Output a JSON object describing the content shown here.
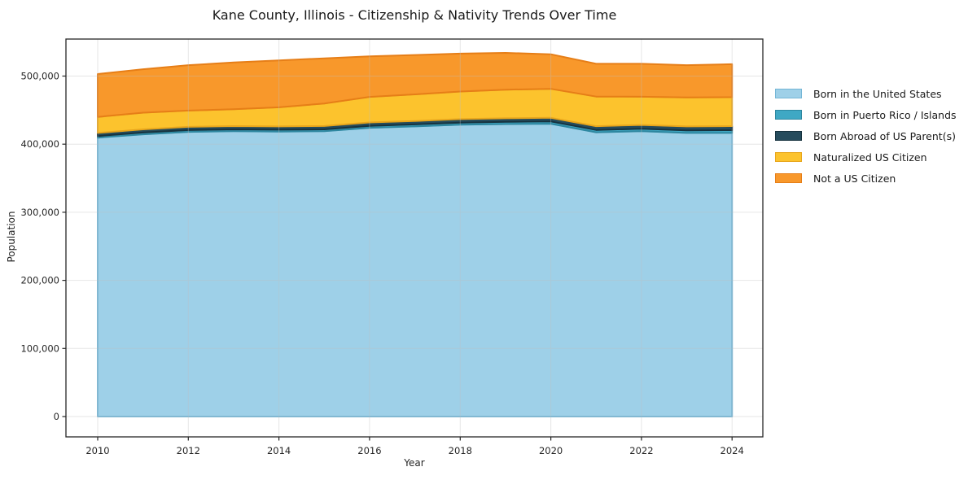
{
  "chart_data": {
    "type": "area",
    "stacked": true,
    "title": "Kane County, Illinois - Citizenship & Nativity Trends Over Time",
    "xlabel": "Year",
    "ylabel": "Population",
    "legend_position": "right",
    "grid": true,
    "xlim": [
      2009.3,
      2024.7
    ],
    "ylim": [
      -30000,
      560000
    ],
    "x": [
      2010,
      2011,
      2012,
      2013,
      2014,
      2015,
      2016,
      2017,
      2018,
      2019,
      2020,
      2021,
      2022,
      2023,
      2024
    ],
    "xticks": [
      {
        "v": 2010,
        "label": "2010"
      },
      {
        "v": 2012,
        "label": "2012"
      },
      {
        "v": 2014,
        "label": "2014"
      },
      {
        "v": 2016,
        "label": "2016"
      },
      {
        "v": 2018,
        "label": "2018"
      },
      {
        "v": 2020,
        "label": "2020"
      },
      {
        "v": 2022,
        "label": "2022"
      },
      {
        "v": 2024,
        "label": "2024"
      }
    ],
    "yticks": [
      {
        "v": 0,
        "label": "0"
      },
      {
        "v": 100000,
        "label": "100,000"
      },
      {
        "v": 200000,
        "label": "200,000"
      },
      {
        "v": 300000,
        "label": "300,000"
      },
      {
        "v": 400000,
        "label": "400,000"
      },
      {
        "v": 500000,
        "label": "500,000"
      }
    ],
    "series": [
      {
        "name": "Born in the United States",
        "color": "#9ed0e8",
        "edge": "#74b6d6",
        "values": [
          409500,
          414500,
          418000,
          419000,
          418500,
          419000,
          424000,
          426000,
          428500,
          429500,
          430000,
          417500,
          419000,
          416500,
          416500
        ]
      },
      {
        "name": "Born in Puerto Rico / Islands",
        "color": "#3fa8c4",
        "edge": "#2e87a0",
        "values": [
          2500,
          2600,
          2700,
          2700,
          2800,
          2800,
          2900,
          3000,
          3100,
          3200,
          3300,
          3400,
          3600,
          3800,
          4000
        ]
      },
      {
        "name": "Born Abroad of US Parent(s)",
        "color": "#264c5d",
        "edge": "#17333f",
        "values": [
          4500,
          4600,
          4700,
          4800,
          4800,
          4900,
          5000,
          5100,
          5200,
          5300,
          5400,
          5500,
          5600,
          5800,
          6000
        ]
      },
      {
        "name": "Naturalized US Citizen",
        "color": "#fcc32d",
        "edge": "#e8a61c",
        "values": [
          23500,
          24500,
          24000,
          24800,
          28000,
          33000,
          37500,
          39000,
          40500,
          42000,
          42500,
          43500,
          41500,
          42500,
          42500
        ]
      },
      {
        "name": "Not a US Citizen",
        "color": "#f8982b",
        "edge": "#e67e17",
        "values": [
          63000,
          63800,
          66600,
          68700,
          68900,
          66300,
          59600,
          57900,
          55700,
          54000,
          50800,
          48100,
          48300,
          47400,
          48500
        ]
      }
    ],
    "colors": {
      "background": "#ffffff",
      "spine": "#262626",
      "grid": "#bfbfbf",
      "text": "#262626"
    }
  }
}
